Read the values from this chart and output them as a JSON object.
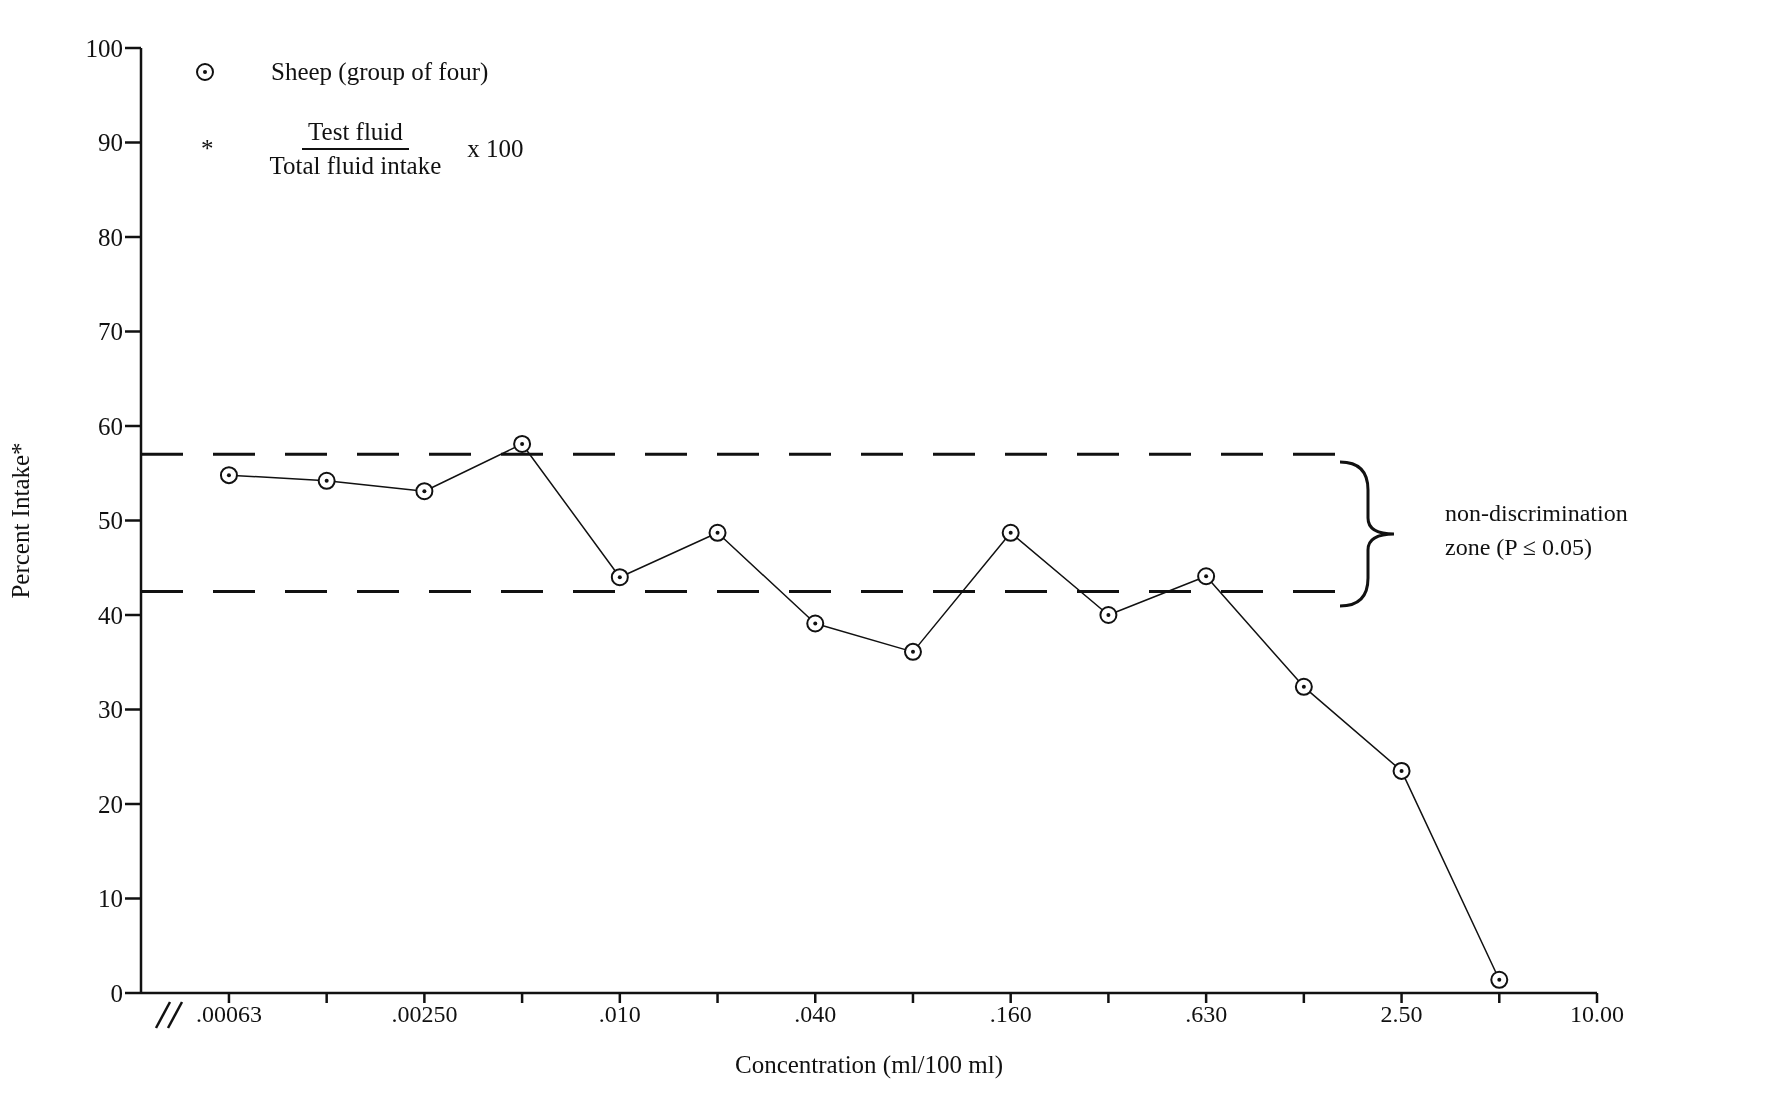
{
  "chart_data": {
    "type": "line",
    "ylabel": "Percent Intake*",
    "xlabel": "Concentration (ml/100 ml)",
    "categories": [
      ".00063",
      null,
      ".00250",
      null,
      ".010",
      null,
      ".040",
      null,
      ".160",
      null,
      ".630",
      null,
      "2.50",
      null,
      "10.00"
    ],
    "series": [
      {
        "name": "Sheep (group of four)",
        "color": "#111111",
        "values": [
          54.8,
          54.2,
          53.1,
          58.1,
          44.0,
          48.7,
          39.1,
          36.1,
          48.7,
          40.0,
          44.1,
          32.4,
          23.5,
          1.4,
          null
        ]
      }
    ],
    "ylim": [
      0,
      100
    ],
    "yticks": [
      0,
      10,
      20,
      30,
      40,
      50,
      60,
      70,
      80,
      90,
      100
    ],
    "ref_lines": [
      {
        "axis": "y",
        "value": 57,
        "line_style": "dashed",
        "color": "#111111"
      },
      {
        "axis": "y",
        "value": 42.5,
        "line_style": "dashed",
        "color": "#111111"
      }
    ],
    "annotations": [
      "*",
      "Test fluid",
      "Total fluid intake",
      "x 100",
      "non-discrimination zone (P ≤ 0.05)"
    ],
    "marker": "circle",
    "line_style": "solid",
    "legend": "top left"
  }
}
